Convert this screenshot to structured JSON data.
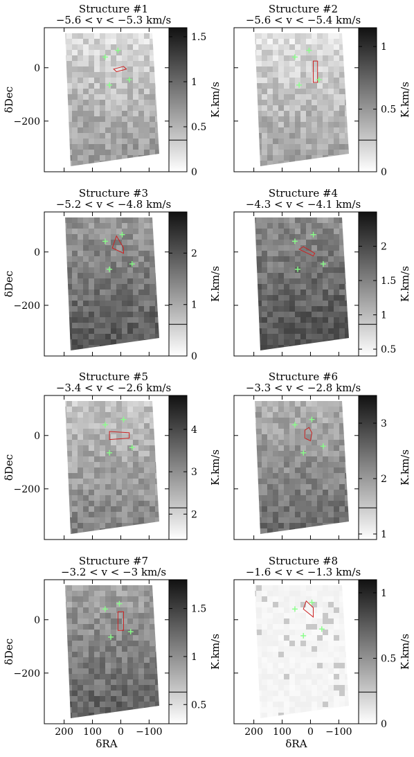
{
  "figure": {
    "panel_columns": 2,
    "colorbar_label": "K.km/s",
    "xlabel": "δRA",
    "ylabel": "δDec",
    "x_ticks": [
      "200",
      "100",
      "0",
      "−100"
    ],
    "y_ticks": [
      "0",
      "−200"
    ]
  },
  "colors": {
    "contour": "#000000",
    "marker": "#88ff88",
    "outline": "#cc2222",
    "frame": "#000000"
  },
  "chart_data": [
    {
      "type": "heatmap",
      "title": "Structure #1",
      "subtitle": "−5.6 < v < −5.3 km/s",
      "colorbar_ticks": [
        "1.5",
        "1",
        "0.5",
        "0"
      ],
      "colorbar_range": [
        0,
        1.6
      ],
      "xlabel": "",
      "ylabel": "δDec",
      "xlim": [
        270,
        -170
      ],
      "ylim": [
        -390,
        150
      ],
      "grid": false,
      "markers": [
        [
          55,
          40
        ],
        [
          10,
          65
        ],
        [
          40,
          -65
        ],
        [
          -30,
          -45
        ]
      ],
      "region": [
        [
          15,
          -15
        ],
        [
          -20,
          -5
        ],
        [
          -10,
          5
        ],
        [
          25,
          -5
        ]
      ]
    },
    {
      "type": "heatmap",
      "title": "Structure #2",
      "subtitle": "−5.6 < v < −5.4 km/s",
      "colorbar_ticks": [
        "1",
        "0.5",
        "0"
      ],
      "colorbar_range": [
        0,
        1.15
      ],
      "xlabel": "",
      "ylabel": "",
      "xlim": [
        270,
        -170
      ],
      "ylim": [
        -390,
        150
      ],
      "grid": false,
      "markers": [
        [
          55,
          40
        ],
        [
          5,
          65
        ],
        [
          40,
          -65
        ],
        [
          -30,
          -45
        ]
      ],
      "region": [
        [
          -10,
          25
        ],
        [
          -25,
          25
        ],
        [
          -25,
          -55
        ],
        [
          -10,
          -55
        ]
      ]
    },
    {
      "type": "heatmap",
      "title": "Structure #3",
      "subtitle": "−5.2 < v < −4.8 km/s",
      "colorbar_ticks": [
        "2",
        "1",
        "0"
      ],
      "colorbar_range": [
        0,
        2.8
      ],
      "xlabel": "",
      "ylabel": "δDec",
      "xlim": [
        270,
        -170
      ],
      "ylim": [
        -390,
        150
      ],
      "grid": false,
      "markers": [
        [
          55,
          40
        ],
        [
          -5,
          65
        ],
        [
          40,
          -65
        ],
        [
          -40,
          -45
        ]
      ],
      "region": [
        [
          30,
          15
        ],
        [
          -10,
          -5
        ],
        [
          -10,
          15
        ],
        [
          15,
          60
        ]
      ]
    },
    {
      "type": "heatmap",
      "title": "Structure #4",
      "subtitle": "−4.3 < v < −4.1 km/s",
      "colorbar_ticks": [
        "2",
        "1.5",
        "1",
        "0.5"
      ],
      "colorbar_range": [
        0.4,
        2.5
      ],
      "xlabel": "",
      "ylabel": "",
      "xlim": [
        270,
        -170
      ],
      "ylim": [
        -390,
        150
      ],
      "grid": false,
      "markers": [
        [
          55,
          40
        ],
        [
          -10,
          65
        ],
        [
          45,
          -65
        ],
        [
          -45,
          -45
        ]
      ],
      "region": [
        [
          40,
          10
        ],
        [
          -10,
          -15
        ],
        [
          -15,
          -5
        ],
        [
          25,
          20
        ]
      ]
    },
    {
      "type": "heatmap",
      "title": "Structure #5",
      "subtitle": "−3.4 < v < −2.6 km/s",
      "colorbar_ticks": [
        "4",
        "3",
        "2"
      ],
      "colorbar_range": [
        1.4,
        4.8
      ],
      "xlabel": "",
      "ylabel": "δDec",
      "xlim": [
        270,
        -170
      ],
      "ylim": [
        -390,
        150
      ],
      "grid": false,
      "markers": [
        [
          55,
          40
        ],
        [
          -10,
          60
        ],
        [
          40,
          -65
        ],
        [
          -40,
          -45
        ]
      ],
      "region": [
        [
          40,
          -15
        ],
        [
          -30,
          -10
        ],
        [
          -30,
          10
        ],
        [
          40,
          15
        ]
      ]
    },
    {
      "type": "heatmap",
      "title": "Structure #6",
      "subtitle": "−3.3 < v < −2.8 km/s",
      "colorbar_ticks": [
        "3",
        "2",
        "1"
      ],
      "colorbar_range": [
        0.9,
        3.5
      ],
      "xlabel": "",
      "ylabel": "",
      "xlim": [
        270,
        -170
      ],
      "ylim": [
        -390,
        150
      ],
      "grid": false,
      "markers": [
        [
          55,
          40
        ],
        [
          -5,
          60
        ],
        [
          25,
          -65
        ],
        [
          -45,
          -40
        ]
      ],
      "region": [
        [
          20,
          -10
        ],
        [
          0,
          -20
        ],
        [
          -5,
          10
        ],
        [
          5,
          30
        ],
        [
          20,
          20
        ]
      ]
    },
    {
      "type": "heatmap",
      "title": "Structure #7",
      "subtitle": "−3.2 < v < −3 km/s",
      "colorbar_ticks": [
        "1.5",
        "1",
        "0.5"
      ],
      "colorbar_range": [
        0.3,
        1.8
      ],
      "xlabel": "δRA",
      "ylabel": "δDec",
      "xlim": [
        270,
        -170
      ],
      "ylim": [
        -390,
        150
      ],
      "grid": false,
      "markers": [
        [
          55,
          40
        ],
        [
          5,
          60
        ],
        [
          35,
          -65
        ],
        [
          -35,
          -45
        ]
      ],
      "region": [
        [
          10,
          -40
        ],
        [
          -10,
          -40
        ],
        [
          -10,
          30
        ],
        [
          10,
          30
        ]
      ]
    },
    {
      "type": "heatmap",
      "title": "Structure #8",
      "subtitle": "−1.6 < v < −1.3 km/s",
      "colorbar_ticks": [
        "1",
        "0.5",
        "0"
      ],
      "colorbar_range": [
        0,
        1.1
      ],
      "xlabel": "δRA",
      "ylabel": "",
      "xlim": [
        270,
        -170
      ],
      "ylim": [
        -390,
        150
      ],
      "grid": false,
      "markers": [
        [
          55,
          40
        ],
        [
          -5,
          65
        ],
        [
          25,
          -60
        ],
        [
          -40,
          -35
        ]
      ],
      "region": [
        [
          25,
          40
        ],
        [
          -10,
          10
        ],
        [
          -10,
          45
        ],
        [
          15,
          70
        ]
      ]
    }
  ]
}
